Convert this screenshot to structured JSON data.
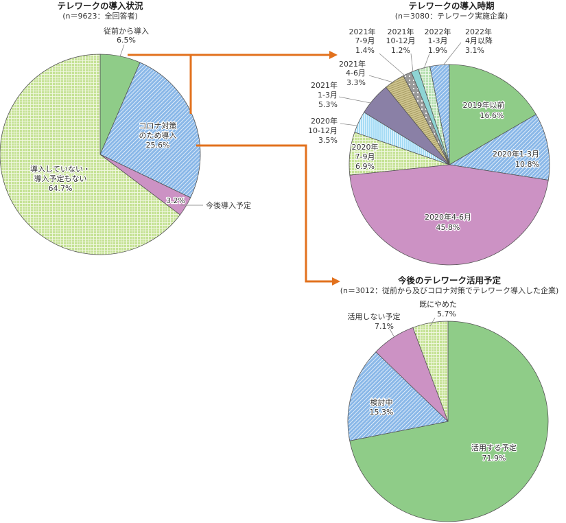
{
  "chart_data": [
    {
      "type": "pie",
      "title": "テレワークの導入状況",
      "subtitle": "(n＝9623：全回答者)",
      "start_angle": "12 o'clock, clockwise",
      "categories": [
        "従前から導入",
        "コロナ対策のため導入",
        "今後導入予定",
        "導入していない・導入予定もない"
      ],
      "values": [
        6.5,
        25.6,
        3.2,
        64.7
      ],
      "labels": [
        "6.5%",
        "25.6%",
        "3.2%",
        "64.7%"
      ],
      "colors": [
        "#8fcc88",
        "#8ab8e8",
        "#cc92c4",
        "#c5e295"
      ],
      "patterns": [
        "solid",
        "diagonal",
        "solid",
        "grid"
      ]
    },
    {
      "type": "pie",
      "title": "テレワークの導入時期",
      "subtitle": "(n＝3080：テレワーク実施企業)",
      "start_angle": "12 o'clock, clockwise",
      "categories": [
        "2019年以前",
        "2020年1-3月",
        "2020年4-6月",
        "2020年7-9月",
        "2020年10-12月",
        "2021年1-3月",
        "2021年4-6月",
        "2021年7-9月",
        "2021年10-12月",
        "2022年1-3月",
        "2022年4月以降"
      ],
      "values": [
        16.6,
        10.8,
        45.8,
        6.9,
        3.5,
        5.3,
        3.3,
        1.4,
        1.2,
        1.9,
        3.1
      ],
      "labels": [
        "16.6%",
        "10.8%",
        "45.8%",
        "6.9%",
        "3.5%",
        "5.3%",
        "3.3%",
        "1.4%",
        "1.2%",
        "1.9%",
        "3.1%"
      ],
      "colors": [
        "#8fcc88",
        "#8ab8e8",
        "#cc92c4",
        "#c5e295",
        "#a6dcf5",
        "#8a80a6",
        "#cfc590",
        "#9a9a9a",
        "#8ed4d4",
        "#b5dfb0",
        "#8ab8e8"
      ],
      "patterns": [
        "solid",
        "diagonal",
        "solid",
        "grid",
        "vlines",
        "solid",
        "hlines",
        "dots",
        "solid",
        "grid",
        "diagonal"
      ]
    },
    {
      "type": "pie",
      "title": "今後のテレワーク活用予定",
      "subtitle": "(n＝3012：従前から及びコロナ対策でテレワーク導入した企業)",
      "start_angle": "12 o'clock, clockwise",
      "categories": [
        "活用する予定",
        "検討中",
        "活用しない予定",
        "既にやめた"
      ],
      "values": [
        71.9,
        15.3,
        7.1,
        5.7
      ],
      "labels": [
        "71.9%",
        "15.3%",
        "7.1%",
        "5.7%"
      ],
      "colors": [
        "#8fcc88",
        "#8ab8e8",
        "#cc92c4",
        "#c5e295"
      ],
      "patterns": [
        "solid",
        "diagonal",
        "solid",
        "grid"
      ]
    }
  ],
  "charts": {
    "c1": {
      "title": "テレワークの導入状況",
      "subtitle": "(n＝9623：全回答者)",
      "s1": {
        "name": "従前から導入",
        "pct": "6.5%"
      },
      "s2": {
        "name1": "コロナ対策",
        "name2": "のため導入",
        "pct": "25.6%"
      },
      "s3": {
        "name": "今後導入予定",
        "pct": "3.2%"
      },
      "s4": {
        "name1": "導入していない・",
        "name2": "導入予定もない",
        "pct": "64.7%"
      }
    },
    "c2": {
      "title": "テレワークの導入時期",
      "subtitle": "(n＝3080：テレワーク実施企業)",
      "s1": {
        "name": "2019年以前",
        "pct": "16.6%"
      },
      "s2": {
        "name": "2020年1-3月",
        "pct": "10.8%"
      },
      "s3": {
        "name": "2020年4-6月",
        "pct": "45.8%"
      },
      "s4": {
        "year": "2020年",
        "period": "7-9月",
        "pct": "6.9%"
      },
      "s5": {
        "year": "2020年",
        "period": "10-12月",
        "pct": "3.5%"
      },
      "s6": {
        "year": "2021年",
        "period": "1-3月",
        "pct": "5.3%"
      },
      "s7": {
        "year": "2021年",
        "period": "4-6月",
        "pct": "3.3%"
      },
      "s8": {
        "year": "2021年",
        "period": "7-9月",
        "pct": "1.4%"
      },
      "s9": {
        "year": "2021年",
        "period": "10-12月",
        "pct": "1.2%"
      },
      "s10": {
        "year": "2022年",
        "period": "1-3月",
        "pct": "1.9%"
      },
      "s11": {
        "year": "2022年",
        "period": "4月以降",
        "pct": "3.1%"
      }
    },
    "c3": {
      "title": "今後のテレワーク活用予定",
      "subtitle": "(n＝3012：従前から及びコロナ対策でテレワーク導入した企業)",
      "s1": {
        "name": "活用する予定",
        "pct": "71.9%"
      },
      "s2": {
        "name": "検討中",
        "pct": "15.3%"
      },
      "s3": {
        "name": "活用しない予定",
        "pct": "7.1%"
      },
      "s4": {
        "name": "既にやめた",
        "pct": "5.7%"
      }
    }
  },
  "arrow_color": "#e2711d"
}
